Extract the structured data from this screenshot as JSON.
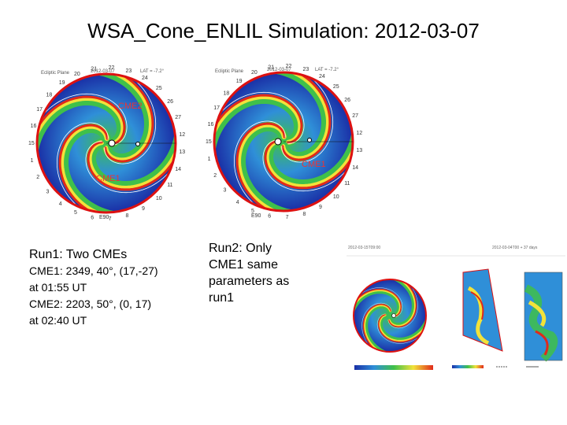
{
  "title": "WSA_Cone_ENLIL Simulation: 2012-03-07",
  "sim1": {
    "plane_label": "Ecliptic Plane",
    "time_label": "2012-03-07",
    "lat_label": "LAT = -7.2°",
    "cme_labels": [
      "CME2",
      "CME1"
    ],
    "bottom_label": "E90",
    "rim_ticks": [
      "15",
      "16",
      "17",
      "18",
      "19",
      "20",
      "21",
      "22",
      "23",
      "24",
      "25",
      "26",
      "27",
      "12",
      "13",
      "14",
      "11",
      "10",
      "9",
      "8",
      "7",
      "6",
      "5",
      "4",
      "3",
      "2",
      "1"
    ]
  },
  "sim2": {
    "plane_label": "Ecliptic Plane",
    "time_label": "2012-03-07",
    "lat_label": "LAT = -7.2°",
    "cme_labels": [
      "CME1"
    ],
    "bottom_label": "E90",
    "rim_ticks": [
      "15",
      "16",
      "17",
      "18",
      "19",
      "20",
      "21",
      "22",
      "23",
      "24",
      "25",
      "26",
      "27",
      "12",
      "13",
      "14",
      "11",
      "10",
      "9",
      "8",
      "7",
      "6",
      "5",
      "4",
      "3",
      "2",
      "1"
    ]
  },
  "run1": {
    "heading": "Run1:   Two CMEs",
    "lines": [
      "CME1:  2349, 40°, (17,-27)",
      "at 01:55 UT",
      "CME2: 2203, 50°,  (0, 17)",
      "at 02:40 UT"
    ]
  },
  "run2": {
    "lines": [
      "Run2:  Only",
      "CME1  same",
      "parameters  as",
      "run1"
    ]
  },
  "panel3": {
    "left_time": "2012-03-15T09:00",
    "right_time": "2012-03-04T00 + 37 days",
    "colors": {
      "ring": "#d11",
      "deep": "#1a2fa6",
      "mid": "#2f8fd8",
      "green": "#3fc04a",
      "yellow": "#f2e23a",
      "red": "#e02a1a"
    }
  }
}
